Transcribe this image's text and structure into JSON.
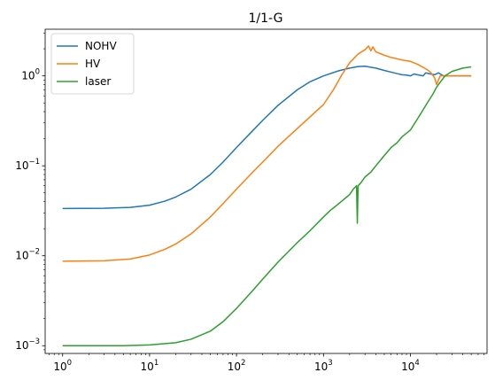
{
  "chart_data": {
    "type": "line",
    "title": "1/1-G",
    "xlabel": "",
    "ylabel": "",
    "xscale": "log",
    "yscale": "log",
    "xlim": [
      0.63,
      76000
    ],
    "ylim": [
      0.00082,
      3.3
    ],
    "grid": false,
    "legend_position": "top-left",
    "x_ticks": [
      {
        "value": 1,
        "base": "10",
        "exp": "0"
      },
      {
        "value": 10,
        "base": "10",
        "exp": "1"
      },
      {
        "value": 100,
        "base": "10",
        "exp": "2"
      },
      {
        "value": 1000,
        "base": "10",
        "exp": "3"
      },
      {
        "value": 10000,
        "base": "10",
        "exp": "4"
      }
    ],
    "y_ticks": [
      {
        "value": 0.001,
        "base": "10",
        "exp": "−3"
      },
      {
        "value": 0.01,
        "base": "10",
        "exp": "−2"
      },
      {
        "value": 0.1,
        "base": "10",
        "exp": "−1"
      },
      {
        "value": 1,
        "base": "10",
        "exp": "0"
      }
    ],
    "series": [
      {
        "name": "NOHV",
        "color": "#1f77b4",
        "points": [
          [
            1,
            0.0335
          ],
          [
            3,
            0.0337
          ],
          [
            6,
            0.0345
          ],
          [
            10,
            0.0365
          ],
          [
            15,
            0.0405
          ],
          [
            20,
            0.045
          ],
          [
            30,
            0.055
          ],
          [
            50,
            0.08
          ],
          [
            70,
            0.11
          ],
          [
            100,
            0.16
          ],
          [
            150,
            0.24
          ],
          [
            200,
            0.32
          ],
          [
            300,
            0.47
          ],
          [
            500,
            0.7
          ],
          [
            700,
            0.86
          ],
          [
            1000,
            1.0
          ],
          [
            1500,
            1.14
          ],
          [
            2000,
            1.22
          ],
          [
            2500,
            1.27
          ],
          [
            3000,
            1.28
          ],
          [
            4000,
            1.22
          ],
          [
            5000,
            1.15
          ],
          [
            6000,
            1.1
          ],
          [
            7000,
            1.06
          ],
          [
            8000,
            1.03
          ],
          [
            9000,
            1.02
          ],
          [
            10000,
            1.0
          ],
          [
            11000,
            1.05
          ],
          [
            12000,
            1.03
          ],
          [
            14000,
            1.0
          ],
          [
            15000,
            1.08
          ],
          [
            17000,
            1.05
          ],
          [
            19000,
            1.03
          ],
          [
            21000,
            1.08
          ],
          [
            24000,
            1.0
          ],
          [
            30000,
            1.0
          ],
          [
            40000,
            1.0
          ],
          [
            50000,
            1.0
          ]
        ]
      },
      {
        "name": "HV",
        "color": "#ff7f0e",
        "points": [
          [
            1,
            0.0087
          ],
          [
            3,
            0.0088
          ],
          [
            6,
            0.0092
          ],
          [
            10,
            0.0102
          ],
          [
            15,
            0.0118
          ],
          [
            20,
            0.0135
          ],
          [
            30,
            0.0175
          ],
          [
            50,
            0.027
          ],
          [
            70,
            0.038
          ],
          [
            100,
            0.055
          ],
          [
            150,
            0.083
          ],
          [
            200,
            0.11
          ],
          [
            300,
            0.165
          ],
          [
            500,
            0.26
          ],
          [
            700,
            0.35
          ],
          [
            1000,
            0.48
          ],
          [
            1300,
            0.7
          ],
          [
            1600,
            1.0
          ],
          [
            2000,
            1.4
          ],
          [
            2500,
            1.75
          ],
          [
            3000,
            1.95
          ],
          [
            3300,
            2.15
          ],
          [
            3500,
            1.9
          ],
          [
            3700,
            2.1
          ],
          [
            4000,
            1.85
          ],
          [
            5000,
            1.7
          ],
          [
            6000,
            1.6
          ],
          [
            7000,
            1.55
          ],
          [
            8000,
            1.5
          ],
          [
            10000,
            1.45
          ],
          [
            12000,
            1.35
          ],
          [
            15000,
            1.2
          ],
          [
            17000,
            1.1
          ],
          [
            19000,
            0.95
          ],
          [
            20000,
            0.8
          ],
          [
            21000,
            0.9
          ],
          [
            22000,
            1.0
          ],
          [
            30000,
            1.0
          ],
          [
            40000,
            1.0
          ],
          [
            50000,
            1.0
          ]
        ]
      },
      {
        "name": "laser",
        "color": "#2ca02c",
        "points": [
          [
            1,
            0.001
          ],
          [
            5,
            0.001
          ],
          [
            10,
            0.00102
          ],
          [
            20,
            0.00108
          ],
          [
            30,
            0.00118
          ],
          [
            50,
            0.00145
          ],
          [
            70,
            0.00185
          ],
          [
            100,
            0.0026
          ],
          [
            150,
            0.004
          ],
          [
            200,
            0.0055
          ],
          [
            300,
            0.0085
          ],
          [
            500,
            0.014
          ],
          [
            700,
            0.019
          ],
          [
            1000,
            0.027
          ],
          [
            1200,
            0.032
          ],
          [
            1400,
            0.036
          ],
          [
            1600,
            0.04
          ],
          [
            1800,
            0.044
          ],
          [
            2000,
            0.048
          ],
          [
            2200,
            0.055
          ],
          [
            2400,
            0.06
          ],
          [
            2450,
            0.023
          ],
          [
            2500,
            0.06
          ],
          [
            2700,
            0.065
          ],
          [
            3000,
            0.075
          ],
          [
            3500,
            0.085
          ],
          [
            4000,
            0.1
          ],
          [
            5000,
            0.13
          ],
          [
            6000,
            0.16
          ],
          [
            7000,
            0.18
          ],
          [
            8000,
            0.21
          ],
          [
            10000,
            0.25
          ],
          [
            12000,
            0.33
          ],
          [
            14000,
            0.42
          ],
          [
            16000,
            0.52
          ],
          [
            18000,
            0.62
          ],
          [
            20000,
            0.75
          ],
          [
            22000,
            0.85
          ],
          [
            25000,
            1.0
          ],
          [
            30000,
            1.12
          ],
          [
            40000,
            1.22
          ],
          [
            50000,
            1.26
          ]
        ]
      }
    ]
  }
}
